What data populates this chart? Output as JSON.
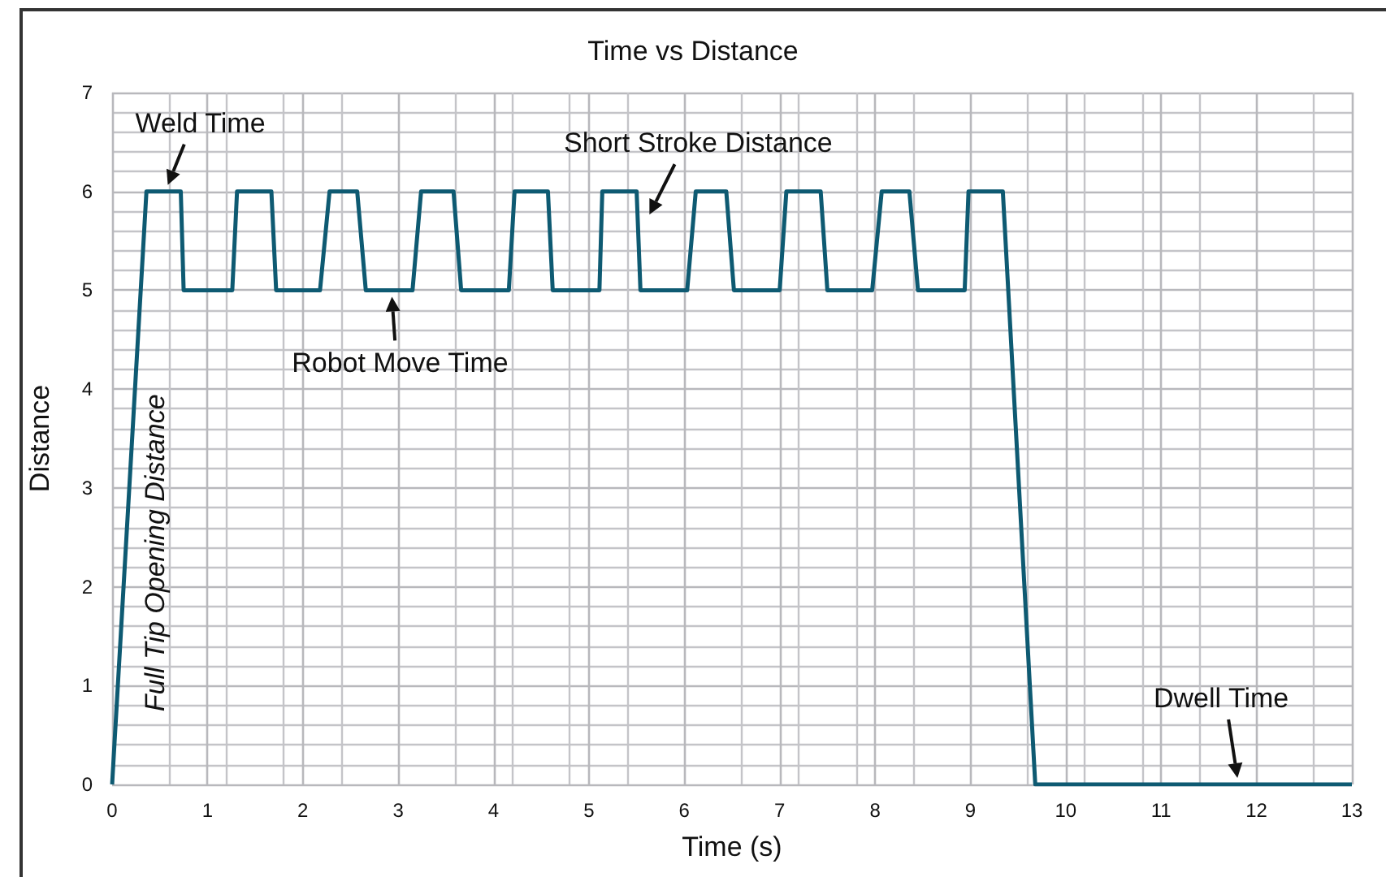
{
  "chart_data": {
    "type": "line",
    "title": "Time vs Distance",
    "xlabel": "Time (s)",
    "ylabel": "Distance",
    "x": [
      0,
      0.36,
      0.72,
      0.75,
      1.26,
      1.31,
      1.67,
      1.72,
      2.18,
      2.28,
      2.57,
      2.66,
      3.15,
      3.24,
      3.58,
      3.66,
      4.16,
      4.22,
      4.57,
      4.62,
      5.11,
      5.14,
      5.5,
      5.54,
      6.03,
      6.12,
      6.44,
      6.52,
      7.0,
      7.07,
      7.43,
      7.5,
      7.97,
      8.07,
      8.36,
      8.45,
      8.94,
      8.98,
      9.34,
      9.68,
      13
    ],
    "series": [
      {
        "color": "#0e5a72",
        "values": [
          0,
          6,
          6,
          5,
          5,
          6,
          6,
          5,
          5,
          6,
          6,
          5,
          5,
          6,
          6,
          5,
          5,
          6,
          6,
          5,
          5,
          6,
          6,
          5,
          5,
          6,
          6,
          5,
          5,
          6,
          6,
          5,
          5,
          6,
          6,
          5,
          5,
          6,
          6,
          0,
          0
        ]
      }
    ],
    "xlim": [
      0,
      13
    ],
    "xticks": [
      0,
      1,
      2,
      3,
      4,
      5,
      6,
      7,
      8,
      9,
      10,
      11,
      12,
      13
    ],
    "ylim": [
      0,
      7
    ],
    "yticks": [
      0,
      1,
      2,
      3,
      4,
      5,
      6,
      7
    ],
    "grid": true,
    "marker": "none",
    "line_style": "solid",
    "annotations": [
      {
        "text": "Weld Time",
        "x": 0.55,
        "y": 6
      },
      {
        "text": "Short Stroke Distance",
        "x": 5.6,
        "y": 5.7
      },
      {
        "text": "Robot Move Time",
        "x": 2.9,
        "y": 5
      },
      {
        "text": "Dwell Time",
        "x": 11.8,
        "y": 0
      },
      {
        "text": "Full Tip Opening Distance",
        "x": 0.2,
        "y": 3
      }
    ]
  }
}
